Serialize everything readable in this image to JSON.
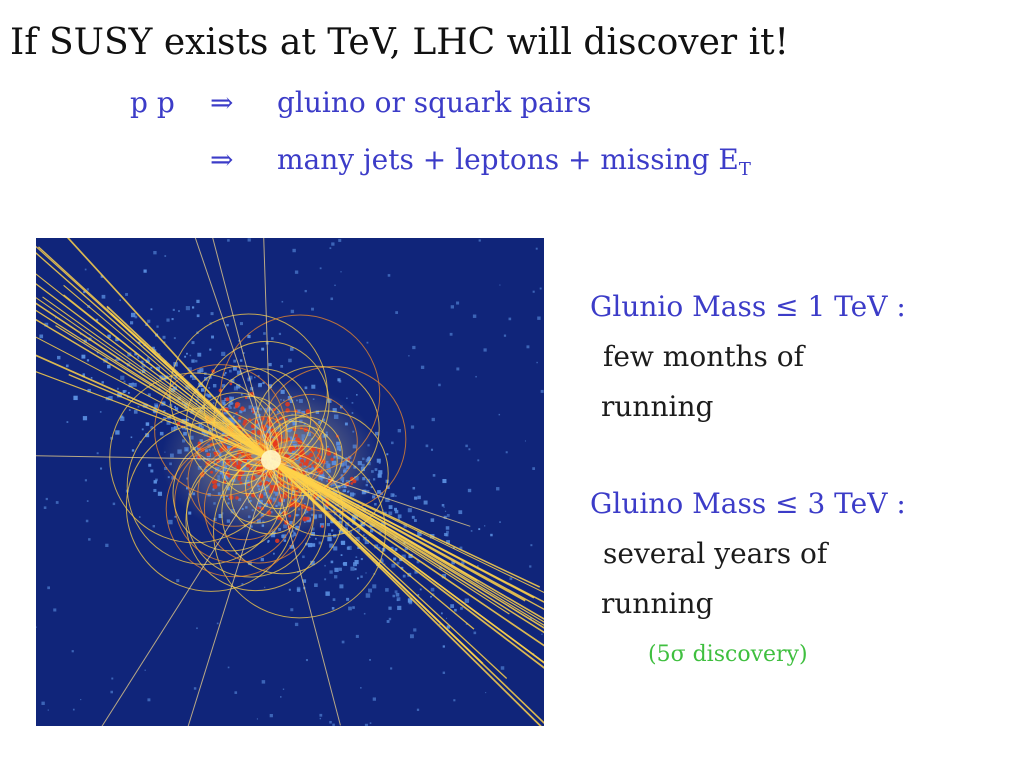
{
  "title": "If SUSY exists at TeV, LHC will discover it!",
  "process": {
    "initial": "p p",
    "arrow": "⇒",
    "products": "gluino or squark pairs",
    "signature_arrow": "⇒",
    "signature": "many jets +  leptons +  missing E",
    "signature_subscript": "T"
  },
  "event_image": {
    "icon": "particle-collision-event-display",
    "colors": {
      "background": "#10257a",
      "calorimeter_hits": "#5a8fe0",
      "tracks": "#ffd24a",
      "hot_hits": "#e83a1c"
    }
  },
  "scenarios": [
    {
      "heading": "Glunio Mass  ≤ 1 TeV :",
      "line1": "few months of",
      "line2": "running"
    },
    {
      "heading": "Gluino Mass  ≤ 3 TeV :",
      "line1": "several years of",
      "line2": "running"
    }
  ],
  "note": "(5σ discovery)"
}
